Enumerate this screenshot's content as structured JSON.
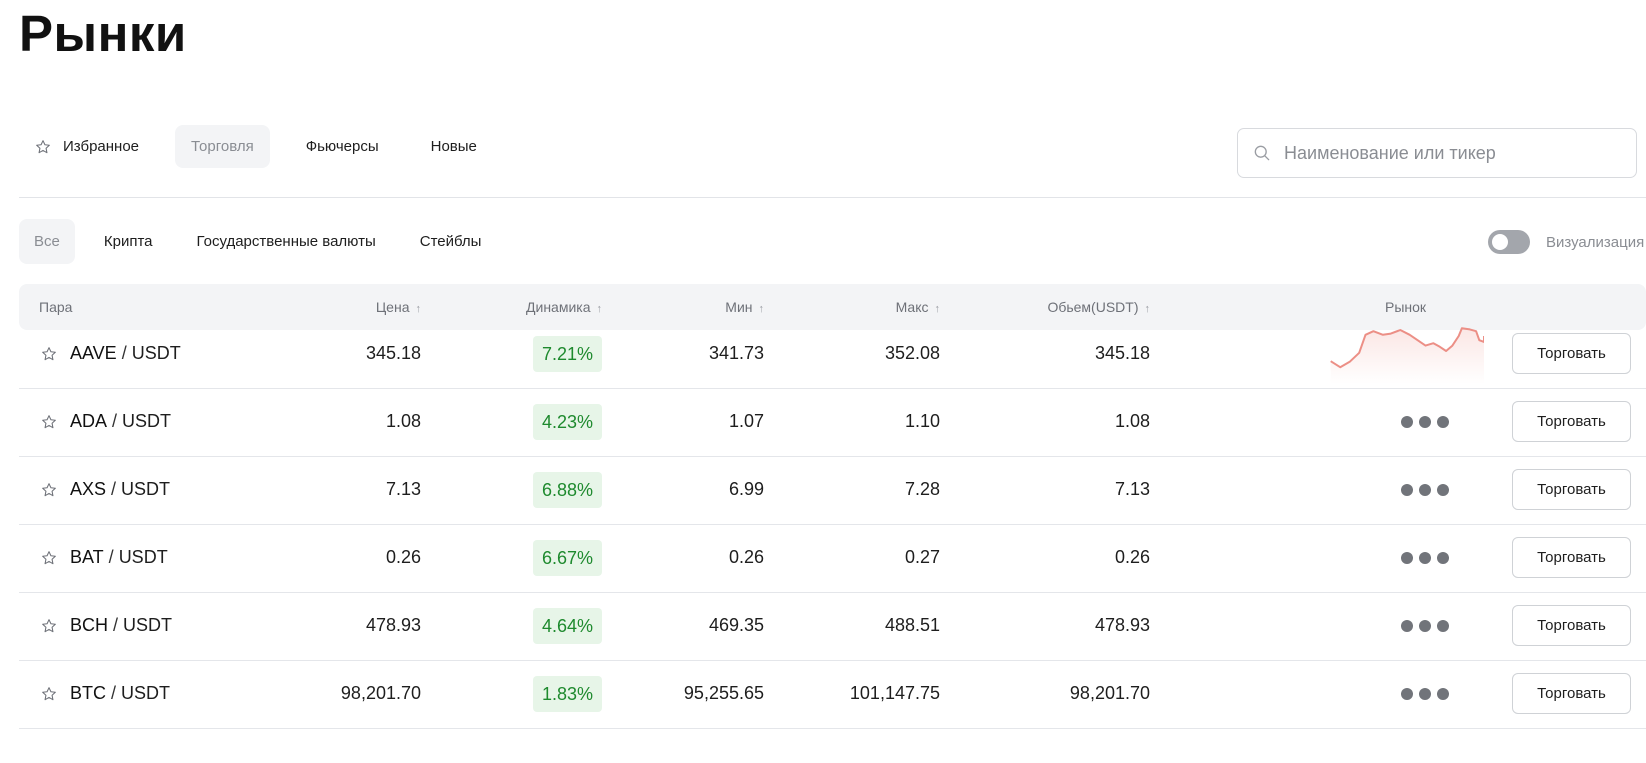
{
  "page": {
    "title": "Рынки"
  },
  "top_tabs": [
    {
      "label": "Избранное",
      "icon": "star-outline-icon"
    },
    {
      "label": "Торговля",
      "active": true
    },
    {
      "label": "Фьючерсы"
    },
    {
      "label": "Новые"
    }
  ],
  "search": {
    "placeholder": "Наименование или тикер",
    "value": "",
    "icon": "search-icon"
  },
  "filters": [
    {
      "label": "Все",
      "active": true
    },
    {
      "label": "Крипта"
    },
    {
      "label": "Государственные валюты"
    },
    {
      "label": "Стейблы"
    }
  ],
  "visualization": {
    "label": "Визуализация",
    "enabled": false
  },
  "table": {
    "headers": {
      "pair": "Пара",
      "price": "Цена",
      "change": "Динамика",
      "min": "Мин",
      "max": "Макс",
      "volume": "Обьем(USDT)",
      "market": "Рынок"
    },
    "sort_arrow": "↑",
    "trade_label": "Торговать",
    "rows": [
      {
        "base": "AAVE",
        "sep": "/",
        "quote": "USDT",
        "price": "345.18",
        "change": "7.21%",
        "min": "341.73",
        "max": "352.08",
        "volume": "345.18",
        "market": "sparkline"
      },
      {
        "base": "ADA",
        "sep": "/",
        "quote": "USDT",
        "price": "1.08",
        "change": "4.23%",
        "min": "1.07",
        "max": "1.10",
        "volume": "1.08",
        "market": "loading"
      },
      {
        "base": "AXS",
        "sep": "/",
        "quote": "USDT",
        "price": "7.13",
        "change": "6.88%",
        "min": "6.99",
        "max": "7.28",
        "volume": "7.13",
        "market": "loading"
      },
      {
        "base": "BAT",
        "sep": "/",
        "quote": "USDT",
        "price": "0.26",
        "change": "6.67%",
        "min": "0.26",
        "max": "0.27",
        "volume": "0.26",
        "market": "loading"
      },
      {
        "base": "BCH",
        "sep": "/",
        "quote": "USDT",
        "price": "478.93",
        "change": "4.64%",
        "min": "469.35",
        "max": "488.51",
        "volume": "478.93",
        "market": "loading"
      },
      {
        "base": "BTC",
        "sep": "/",
        "quote": "USDT",
        "price": "98,201.70",
        "change": "1.83%",
        "min": "95,255.65",
        "max": "101,147.75",
        "volume": "98,201.70",
        "market": "loading"
      }
    ]
  },
  "colors": {
    "positive_text": "#1e8a2e",
    "positive_bg": "#e7f5e8",
    "sparkline": "#ec8f86",
    "header_bg": "#f3f4f6",
    "active_tab_bg": "#f3f4f6"
  }
}
